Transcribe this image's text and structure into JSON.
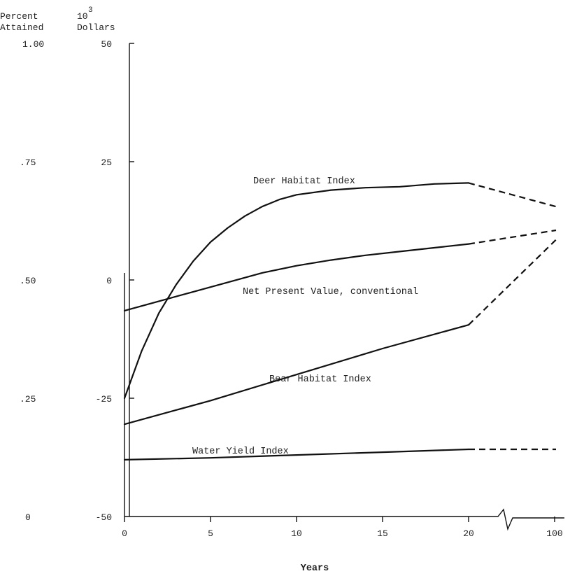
{
  "chart_data": {
    "type": "line",
    "left_axis": {
      "title_lines": [
        "Percent",
        "Attained"
      ],
      "ticks": [
        "1.00",
        ".75",
        ".50",
        ".25",
        "0"
      ],
      "range": [
        0,
        1
      ]
    },
    "right_axis": {
      "exponent_base": "10",
      "exponent": "3",
      "title_line2": "Dollars",
      "ticks": [
        "50",
        "25",
        "0",
        "-25",
        "-50"
      ],
      "range": [
        -50,
        50
      ]
    },
    "x_axis": {
      "label": "Years",
      "ticks": [
        "0",
        "5",
        "10",
        "15",
        "20",
        "100"
      ],
      "range": [
        0,
        20
      ],
      "break_after": 20,
      "end_value": 100
    },
    "series": [
      {
        "name": "Deer Habitat Index",
        "points": [
          [
            0,
            0.25
          ],
          [
            1,
            0.35
          ],
          [
            2,
            0.43
          ],
          [
            3,
            0.49
          ],
          [
            4,
            0.54
          ],
          [
            5,
            0.58
          ],
          [
            6,
            0.61
          ],
          [
            7,
            0.635
          ],
          [
            8,
            0.655
          ],
          [
            9,
            0.67
          ],
          [
            10,
            0.68
          ],
          [
            12,
            0.69
          ],
          [
            14,
            0.695
          ],
          [
            16,
            0.697
          ],
          [
            18,
            0.703
          ],
          [
            20,
            0.705
          ]
        ],
        "end_value": 0.655
      },
      {
        "name": "Net Present Value, conventional",
        "points": [
          [
            0,
            -6.5
          ],
          [
            2,
            -4.5
          ],
          [
            4,
            -2.5
          ],
          [
            6,
            -0.5
          ],
          [
            8,
            1.5
          ],
          [
            10,
            3
          ],
          [
            12,
            4.2
          ],
          [
            14,
            5.2
          ],
          [
            16,
            6
          ],
          [
            18,
            6.8
          ],
          [
            20,
            7.6
          ]
        ],
        "end_value": 10.5
      },
      {
        "name": "Bear Habitat Index",
        "points": [
          [
            0,
            0.195
          ],
          [
            5,
            0.245
          ],
          [
            10,
            0.3
          ],
          [
            15,
            0.355
          ],
          [
            20,
            0.405
          ]
        ],
        "end_value": 0.585
      },
      {
        "name": "Water Yield Index",
        "points": [
          [
            0,
            0.12
          ],
          [
            5,
            0.124
          ],
          [
            10,
            0.13
          ],
          [
            15,
            0.136
          ],
          [
            20,
            0.142
          ]
        ],
        "end_value": 0.142
      }
    ]
  }
}
